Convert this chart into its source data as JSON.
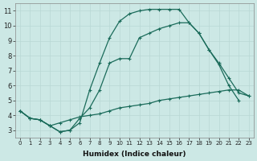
{
  "xlabel": "Humidex (Indice chaleur)",
  "bg_color": "#cce8e5",
  "grid_color": "#b8d8d4",
  "line_color": "#1a6b5a",
  "xlim": [
    -0.5,
    23.5
  ],
  "ylim": [
    2.5,
    11.5
  ],
  "xticks": [
    0,
    1,
    2,
    3,
    4,
    5,
    6,
    7,
    8,
    9,
    10,
    11,
    12,
    13,
    14,
    15,
    16,
    17,
    18,
    19,
    20,
    21,
    22,
    23
  ],
  "yticks": [
    3,
    4,
    5,
    6,
    7,
    8,
    9,
    10,
    11
  ],
  "curve_upper_x": [
    0,
    1,
    2,
    3,
    4,
    5,
    6,
    7,
    8,
    9,
    10,
    11,
    12,
    13,
    14,
    15,
    16,
    17,
    18,
    19,
    20,
    21,
    22
  ],
  "curve_upper_y": [
    4.3,
    3.8,
    3.7,
    3.3,
    2.9,
    3.0,
    3.5,
    5.7,
    7.5,
    9.2,
    10.3,
    10.8,
    11.0,
    11.1,
    11.1,
    11.1,
    11.1,
    10.2,
    9.5,
    8.4,
    7.4,
    6.0,
    5.0
  ],
  "curve_middle_x": [
    0,
    1,
    2,
    3,
    4,
    5,
    6,
    7,
    8,
    9,
    10,
    11,
    12,
    13,
    14,
    15,
    16,
    17,
    18,
    19,
    20,
    21,
    22,
    23
  ],
  "curve_middle_y": [
    4.3,
    3.8,
    3.7,
    3.3,
    2.9,
    3.0,
    3.8,
    4.5,
    5.7,
    7.5,
    7.8,
    7.8,
    9.2,
    9.5,
    9.8,
    10.0,
    10.2,
    10.2,
    9.5,
    8.4,
    7.5,
    6.5,
    5.5,
    5.3
  ],
  "curve_lower_x": [
    0,
    1,
    2,
    3,
    4,
    5,
    6,
    7,
    8,
    9,
    10,
    11,
    12,
    13,
    14,
    15,
    16,
    17,
    18,
    19,
    20,
    21,
    22,
    23
  ],
  "curve_lower_y": [
    4.3,
    3.8,
    3.7,
    3.3,
    3.5,
    3.7,
    3.9,
    4.0,
    4.1,
    4.3,
    4.5,
    4.6,
    4.7,
    4.8,
    5.0,
    5.1,
    5.2,
    5.3,
    5.4,
    5.5,
    5.6,
    5.7,
    5.7,
    5.3
  ]
}
